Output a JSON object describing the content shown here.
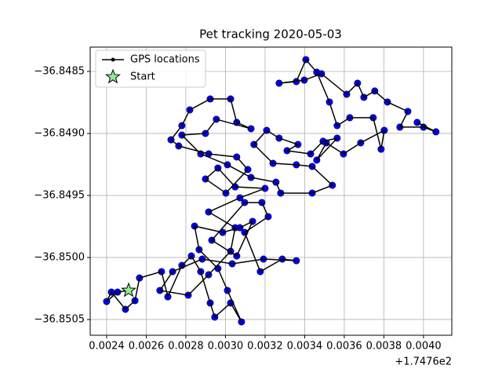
{
  "chart_data": {
    "type": "line",
    "title": "Pet tracking 2020-05-03",
    "x_offset_label": "+1.7476e2",
    "xlim": [
      0.002317,
      0.004143
    ],
    "ylim": [
      -36.850627,
      -36.848304
    ],
    "xticks": [
      0.0024,
      0.0026,
      0.0028,
      {
        "value": 0.003,
        "label": "0.0030"
      },
      0.0032,
      0.0034,
      0.0036,
      0.0038,
      {
        "value": 0.004,
        "label": "0.0040"
      }
    ],
    "yticks": [
      {
        "value": -36.8485,
        "label": "−36.8485"
      },
      {
        "value": -36.849,
        "label": "−36.8490"
      },
      {
        "value": -36.8495,
        "label": "−36.8495"
      },
      {
        "value": -36.85,
        "label": "−36.8500"
      },
      {
        "value": -36.8505,
        "label": "−36.8505"
      }
    ],
    "grid": true,
    "legend": "upper left",
    "series": [
      {
        "name": "GPS locations",
        "color": "#000000",
        "marker_color": "#0000ff",
        "x": [
          0.002511,
          0.002455,
          0.0024,
          0.002424,
          0.002495,
          0.002543,
          0.002566,
          0.002677,
          0.002709,
          0.00278,
          0.002828,
          0.002875,
          0.002923,
          0.002946,
          0.003026,
          0.003081,
          0.00301,
          0.002962,
          0.002867,
          0.002844,
          0.002986,
          0.003073,
          0.003137,
          0.003057,
          0.002931,
          0.003097,
          0.003184,
          0.003216,
          0.003097,
          0.003176,
          0.003287,
          0.003358,
          0.003192,
          0.003034,
          0.002883,
          0.002733,
          0.002669,
          0.002812,
          0.002915,
          0.003026,
          0.003049,
          0.002915,
          0.003073,
          0.0032,
          0.003049,
          0.002962,
          0.002899,
          0.003002,
          0.003113,
          0.003057,
          0.002915,
          0.002764,
          0.002725,
          0.00278,
          0.00282,
          0.002923,
          0.003026,
          0.003057,
          0.003129,
          0.002954,
          0.002899,
          0.00278,
          0.002875,
          0.00301,
          0.003129,
          0.003255,
          0.003279,
          0.003438,
          0.00354,
          0.003438,
          0.003358,
          0.00324,
          0.003144,
          0.003208,
          0.003271,
          0.003366,
          0.003311,
          0.00343,
          0.003493,
          0.003564,
          0.003461,
          0.003509,
          0.003596,
          0.003683,
          0.003802,
          0.003786,
          0.003746,
          0.003628,
          0.003564,
          0.003525,
          0.003461,
          0.003406,
          0.003358,
          0.003271,
          0.003398,
          0.003485,
          0.003612,
          0.003667,
          0.003699,
          0.003754,
          0.003818,
          0.003921,
          0.003881,
          0.004,
          0.004063,
          0.003968
        ],
        "y": [
          -36.850266,
          -36.850279,
          -36.850355,
          -36.850279,
          -36.850418,
          -36.850348,
          -36.850165,
          -36.850114,
          -36.850317,
          -36.850064,
          -36.849988,
          -36.850114,
          -36.850367,
          -36.850481,
          -36.850367,
          -36.850519,
          -36.850266,
          -36.850089,
          -36.849937,
          -36.849747,
          -36.849798,
          -36.84976,
          -36.849709,
          -36.849988,
          -36.849861,
          -36.849557,
          -36.849557,
          -36.849671,
          -36.849798,
          -36.850114,
          -36.850013,
          -36.850026,
          -36.850013,
          -36.850051,
          -36.850013,
          -36.850114,
          -36.850266,
          -36.850304,
          -36.850139,
          -36.84995,
          -36.84976,
          -36.849633,
          -36.849519,
          -36.849443,
          -36.849431,
          -36.849279,
          -36.849367,
          -36.849481,
          -36.849291,
          -36.84919,
          -36.849165,
          -36.849101,
          -36.849051,
          -36.848937,
          -36.84881,
          -36.848722,
          -36.848722,
          -36.848911,
          -36.848962,
          -36.848886,
          -36.849,
          -36.849013,
          -36.849165,
          -36.849253,
          -36.849355,
          -36.849393,
          -36.849481,
          -36.849481,
          -36.849418,
          -36.849266,
          -36.849253,
          -36.849241,
          -36.849089,
          -36.848975,
          -36.849038,
          -36.849089,
          -36.849139,
          -36.849165,
          -36.849063,
          -36.849038,
          -36.849215,
          -36.849076,
          -36.849165,
          -36.849076,
          -36.848975,
          -36.849127,
          -36.848873,
          -36.848873,
          -36.848937,
          -36.848747,
          -36.848506,
          -36.848405,
          -36.848582,
          -36.848595,
          -36.84857,
          -36.848519,
          -36.848684,
          -36.848595,
          -36.848709,
          -36.848658,
          -36.848747,
          -36.848823,
          -36.848949,
          -36.848949,
          -36.848987,
          -36.848911
        ]
      },
      {
        "name": "Start",
        "color": "#90ee90",
        "x": [
          0.002511
        ],
        "y": [
          -36.850266
        ]
      }
    ]
  }
}
